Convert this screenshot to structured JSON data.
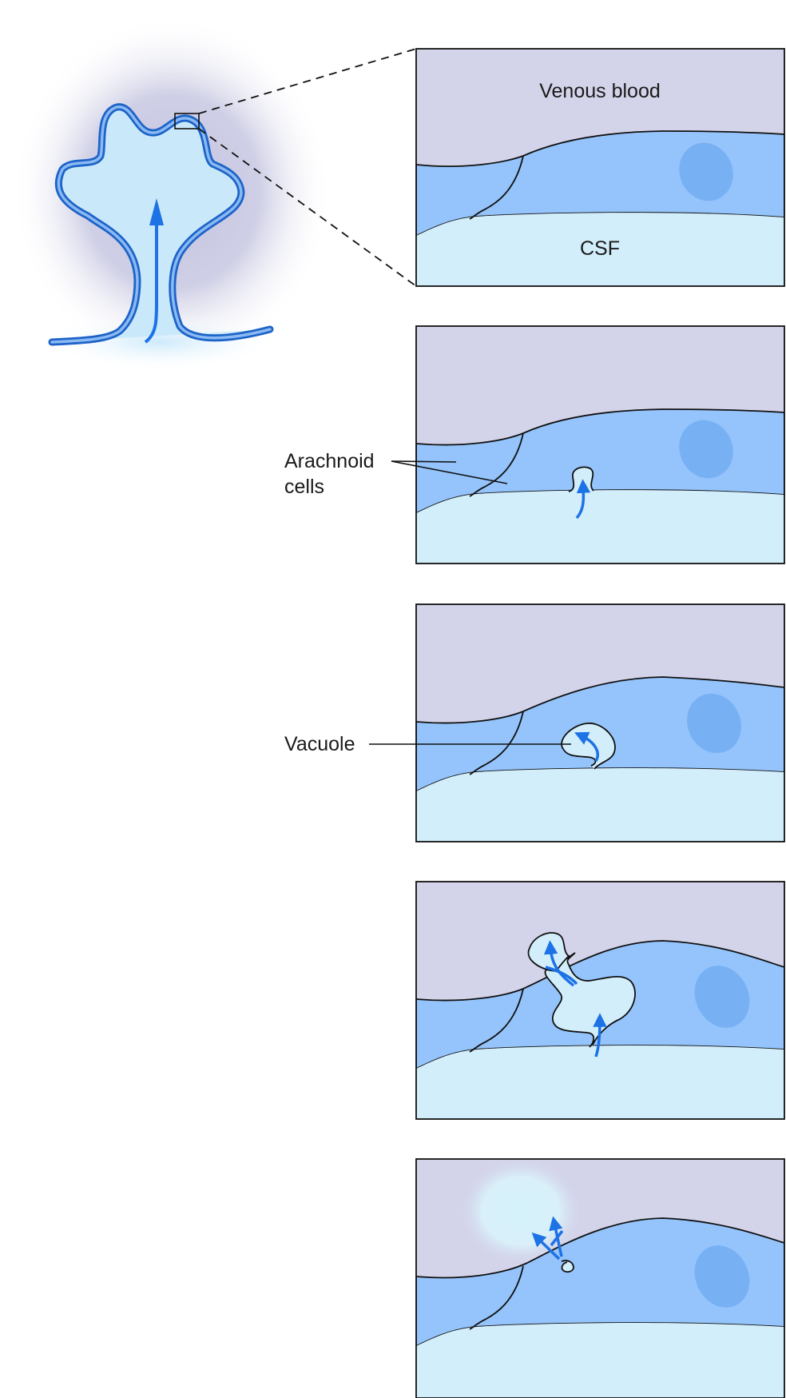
{
  "labels": {
    "venous_blood": "Venous blood",
    "csf": "CSF",
    "arachnoid_line1": "Arachnoid",
    "arachnoid_line2": "cells",
    "vacuole": "Vacuole"
  },
  "colors": {
    "venous": "#d3d3ea",
    "arachnoid": "#94c4fb",
    "csf": "#d2eefb",
    "nucleus": "#78b0f4",
    "arrow": "#1d72e6",
    "outline": "#111111",
    "villus_fill": "#c9e9fb"
  }
}
